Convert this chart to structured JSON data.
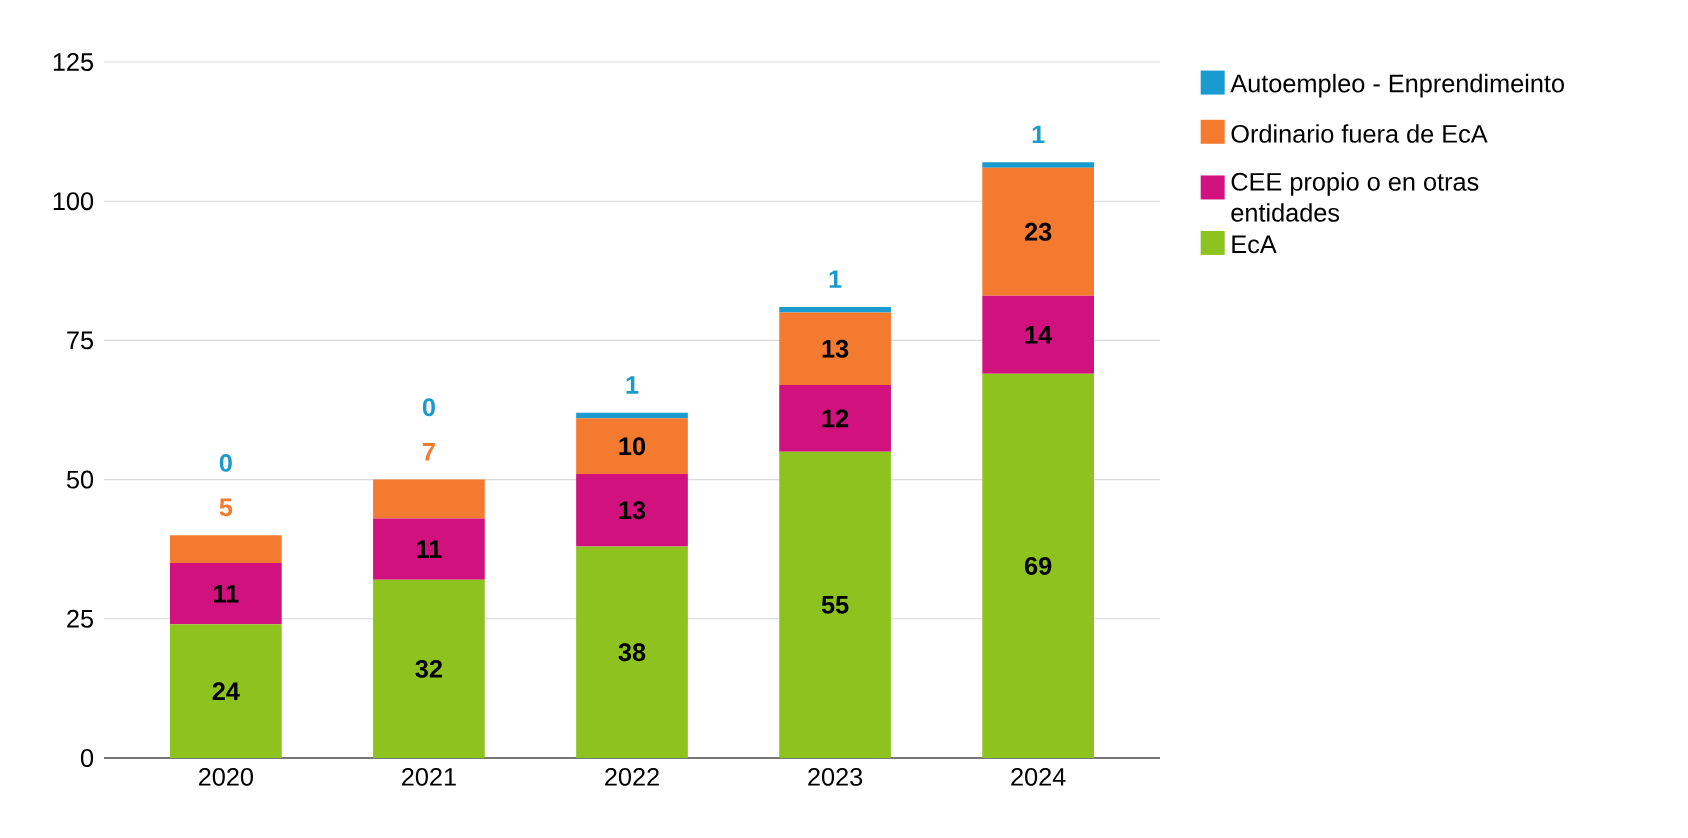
{
  "chart_data": {
    "type": "bar",
    "stacked": true,
    "categories": [
      "2020",
      "2021",
      "2022",
      "2023",
      "2024"
    ],
    "series": [
      {
        "name": "EcA",
        "color": "#8dc21f",
        "values": [
          24,
          32,
          38,
          55,
          69
        ]
      },
      {
        "name": "CEE propio o en otras entidades",
        "color": "#d1127e",
        "values": [
          11,
          11,
          13,
          12,
          14
        ]
      },
      {
        "name": "Ordinario fuera de EcA",
        "color": "#f47a30",
        "values": [
          5,
          7,
          10,
          13,
          23
        ]
      },
      {
        "name": "Autoempleo - Enprendimeinto",
        "color": "#1a9bd0",
        "values": [
          0,
          0,
          1,
          1,
          1
        ]
      }
    ],
    "ylim": [
      0,
      125
    ],
    "yticks": [
      0,
      25,
      50,
      75,
      100,
      125
    ],
    "grid": "y",
    "legend": "top right",
    "data_labels": true
  }
}
